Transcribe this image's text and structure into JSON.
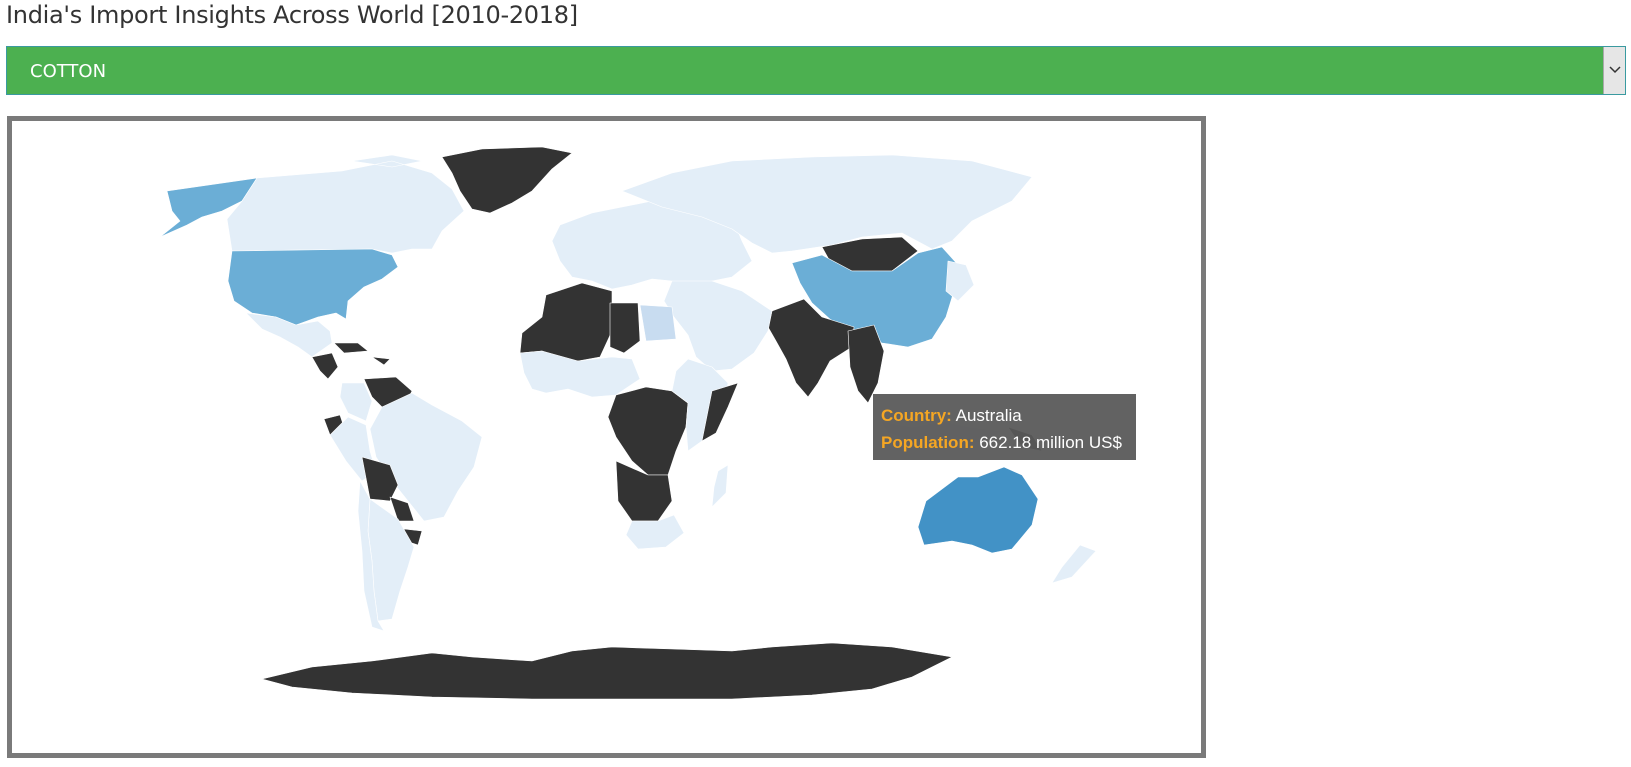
{
  "page": {
    "title": "India's Import Insights Across World [2010-2018]"
  },
  "commodity_select": {
    "selected": "COTTON",
    "background": "#4cb050"
  },
  "map": {
    "colors": {
      "no_data": "#333333",
      "low": "#e3eef8",
      "low_mid": "#c8dcf0",
      "mid": "#6baed6",
      "high": "#4292c6",
      "border": "#ffffff"
    },
    "regions": [
      {
        "name": "Greenland",
        "level": "no_data"
      },
      {
        "name": "Alaska",
        "level": "mid"
      },
      {
        "name": "Canada",
        "level": "low"
      },
      {
        "name": "United States",
        "level": "mid"
      },
      {
        "name": "Mexico",
        "level": "low"
      },
      {
        "name": "Central America",
        "level": "no_data"
      },
      {
        "name": "Caribbean",
        "level": "no_data"
      },
      {
        "name": "Colombia",
        "level": "low"
      },
      {
        "name": "Venezuela",
        "level": "no_data"
      },
      {
        "name": "Ecuador",
        "level": "no_data"
      },
      {
        "name": "Peru",
        "level": "low"
      },
      {
        "name": "Brazil",
        "level": "low"
      },
      {
        "name": "Bolivia",
        "level": "no_data"
      },
      {
        "name": "Paraguay",
        "level": "no_data"
      },
      {
        "name": "Uruguay",
        "level": "no_data"
      },
      {
        "name": "Argentina",
        "level": "low"
      },
      {
        "name": "Chile",
        "level": "low"
      },
      {
        "name": "Europe",
        "level": "low"
      },
      {
        "name": "Russia",
        "level": "low"
      },
      {
        "name": "Mongolia",
        "level": "no_data"
      },
      {
        "name": "China",
        "level": "mid"
      },
      {
        "name": "India",
        "level": "no_data"
      },
      {
        "name": "Middle East",
        "level": "low"
      },
      {
        "name": "Egypt",
        "level": "low_mid"
      },
      {
        "name": "North Africa (west)",
        "level": "no_data"
      },
      {
        "name": "Libya",
        "level": "no_data"
      },
      {
        "name": "West Africa",
        "level": "low"
      },
      {
        "name": "Central Africa",
        "level": "no_data"
      },
      {
        "name": "East Africa",
        "level": "low"
      },
      {
        "name": "Somalia",
        "level": "no_data"
      },
      {
        "name": "Southern Africa",
        "level": "no_data"
      },
      {
        "name": "South Africa",
        "level": "low"
      },
      {
        "name": "Madagascar",
        "level": "low"
      },
      {
        "name": "Southeast Asia",
        "level": "no_data"
      },
      {
        "name": "Indonesia",
        "level": "low"
      },
      {
        "name": "Papua New Guinea",
        "level": "no_data"
      },
      {
        "name": "Australia",
        "level": "high"
      },
      {
        "name": "New Zealand",
        "level": "low"
      },
      {
        "name": "Japan",
        "level": "low"
      },
      {
        "name": "Antarctica",
        "level": "no_data"
      }
    ]
  },
  "tooltip": {
    "country_label": "Country:",
    "country_value": "Australia",
    "population_label": "Population:",
    "population_value": "662.18 million US$"
  }
}
